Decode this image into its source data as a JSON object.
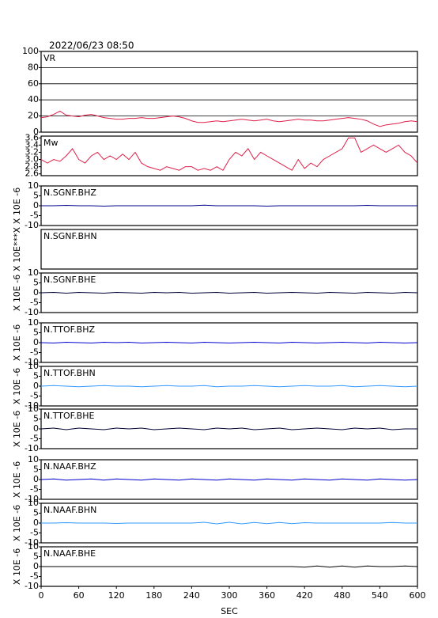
{
  "title": "2022/06/23  08:50",
  "chart_data": [
    {
      "type": "line",
      "title": "VR",
      "xlim": [
        0,
        600
      ],
      "ylim": [
        0,
        100
      ],
      "yticks": [
        0,
        20,
        40,
        60,
        80,
        100
      ],
      "grid": true,
      "x": [
        0,
        10,
        20,
        30,
        40,
        50,
        60,
        70,
        80,
        90,
        100,
        110,
        120,
        130,
        140,
        150,
        160,
        170,
        180,
        190,
        200,
        210,
        220,
        230,
        240,
        250,
        260,
        270,
        280,
        290,
        300,
        310,
        320,
        330,
        340,
        350,
        360,
        370,
        380,
        390,
        400,
        410,
        420,
        430,
        440,
        450,
        460,
        470,
        480,
        490,
        500,
        510,
        520,
        530,
        540,
        550,
        560,
        570,
        580,
        590,
        600
      ],
      "series": [
        {
          "color": "#e0204a",
          "values": [
            18,
            19,
            22,
            26,
            21,
            20,
            19,
            21,
            22,
            20,
            18,
            17,
            16,
            16,
            17,
            17,
            18,
            17,
            17,
            18,
            19,
            20,
            19,
            17,
            14,
            12,
            12,
            13,
            14,
            13,
            14,
            15,
            16,
            15,
            14,
            15,
            16,
            14,
            13,
            14,
            15,
            16,
            15,
            15,
            14,
            14,
            15,
            16,
            17,
            18,
            17,
            16,
            14,
            10,
            7,
            9,
            10,
            11,
            13,
            14,
            13
          ]
        }
      ]
    },
    {
      "type": "line",
      "title": "Mw",
      "xlim": [
        0,
        600
      ],
      "ylim": [
        2.55,
        3.65
      ],
      "yticks": [
        2.6,
        2.8,
        {
          "value": 3,
          "label": "3.0"
        },
        3.2,
        3.4,
        3.6
      ],
      "grid": false,
      "x": [
        0,
        10,
        20,
        30,
        40,
        50,
        60,
        70,
        80,
        90,
        100,
        110,
        120,
        130,
        140,
        150,
        160,
        170,
        180,
        190,
        200,
        210,
        220,
        230,
        240,
        250,
        260,
        270,
        280,
        290,
        300,
        310,
        320,
        330,
        340,
        350,
        360,
        370,
        380,
        390,
        400,
        410,
        420,
        430,
        440,
        450,
        460,
        470,
        480,
        490,
        500,
        510,
        520,
        530,
        540,
        550,
        560,
        570,
        580,
        590,
        600
      ],
      "series": [
        {
          "color": "#e0204a",
          "values": [
            3.0,
            2.9,
            3.0,
            2.95,
            3.1,
            3.3,
            3.0,
            2.9,
            3.1,
            3.2,
            3.0,
            3.1,
            3.0,
            3.15,
            3.0,
            3.2,
            2.9,
            2.8,
            2.75,
            2.7,
            2.8,
            2.75,
            2.7,
            2.8,
            2.8,
            2.7,
            2.75,
            2.7,
            2.8,
            2.7,
            3.0,
            3.2,
            3.1,
            3.3,
            3.0,
            3.2,
            3.1,
            3.0,
            2.9,
            2.8,
            2.7,
            3.0,
            2.75,
            2.9,
            2.8,
            3.0,
            3.1,
            3.2,
            3.3,
            3.6,
            3.6,
            3.2,
            3.3,
            3.4,
            3.3,
            3.2,
            3.3,
            3.4,
            3.2,
            3.1,
            2.9
          ]
        }
      ]
    },
    {
      "type": "line",
      "title": "N.SGNF.BHZ",
      "ylabel": "X 10E -6",
      "xlim": [
        0,
        600
      ],
      "ylim": [
        -10,
        10
      ],
      "yticks": [
        -10,
        -5,
        0,
        5,
        10
      ],
      "x": [
        0,
        20,
        40,
        60,
        80,
        100,
        120,
        140,
        160,
        180,
        200,
        220,
        240,
        260,
        280,
        300,
        320,
        340,
        360,
        380,
        400,
        420,
        440,
        460,
        480,
        500,
        520,
        540,
        560,
        580,
        600
      ],
      "series": [
        {
          "color": "#00008b",
          "values": [
            0,
            0,
            0.2,
            0,
            0,
            -0.2,
            0,
            0,
            0,
            0,
            0,
            0,
            0,
            0.3,
            0,
            0,
            0,
            0,
            -0.2,
            0,
            0,
            0,
            0,
            0,
            0,
            0,
            0.2,
            0,
            0,
            0,
            0
          ]
        }
      ]
    },
    {
      "type": "line",
      "title": "N.SGNF.BHN",
      "ylabel": "X 10E***X",
      "xlim": [
        0,
        600
      ]
    },
    {
      "type": "line",
      "title": "N.SGNF.BHE",
      "ylabel": "X 10E -6",
      "xlim": [
        0,
        600
      ],
      "ylim": [
        -10,
        10
      ],
      "yticks": [
        -10,
        -5,
        0,
        5,
        10
      ],
      "x": [
        0,
        20,
        40,
        60,
        80,
        100,
        120,
        140,
        160,
        180,
        200,
        220,
        240,
        260,
        280,
        300,
        320,
        340,
        360,
        380,
        400,
        420,
        440,
        460,
        480,
        500,
        520,
        540,
        560,
        580,
        600
      ],
      "series": [
        {
          "color": "#000033",
          "values": [
            0,
            0.2,
            -0.2,
            0.2,
            0,
            -0.2,
            0.2,
            0,
            -0.2,
            0.2,
            0,
            0.2,
            -0.2,
            0,
            0.2,
            -0.2,
            0,
            0.2,
            -0.2,
            0,
            0.2,
            0,
            -0.2,
            0.2,
            0,
            -0.2,
            0.2,
            0,
            -0.2,
            0.2,
            0
          ]
        }
      ]
    },
    {
      "type": "line",
      "title": "N.TTOF.BHZ",
      "ylabel": "X 10E -6",
      "xlim": [
        0,
        600
      ],
      "ylim": [
        -10,
        10
      ],
      "yticks": [
        -10,
        -5,
        0,
        5,
        10
      ],
      "x": [
        0,
        20,
        40,
        60,
        80,
        100,
        120,
        140,
        160,
        180,
        200,
        220,
        240,
        260,
        280,
        300,
        320,
        340,
        360,
        380,
        400,
        420,
        440,
        460,
        480,
        500,
        520,
        540,
        560,
        580,
        600
      ],
      "series": [
        {
          "color": "#0000cd",
          "values": [
            0,
            -0.2,
            0.2,
            0,
            -0.2,
            0.2,
            0,
            0.2,
            -0.2,
            0,
            0.2,
            0,
            -0.2,
            0.2,
            0,
            -0.2,
            0,
            0.2,
            0,
            -0.2,
            0.2,
            0,
            -0.2,
            0,
            0.2,
            0,
            -0.2,
            0.2,
            0,
            -0.2,
            0
          ]
        }
      ]
    },
    {
      "type": "line",
      "title": "N.TTOF.BHN",
      "ylabel": "X 10E -6",
      "xlim": [
        0,
        600
      ],
      "ylim": [
        -10,
        10
      ],
      "yticks": [
        -10,
        -5,
        0,
        5,
        10
      ],
      "x": [
        0,
        20,
        40,
        60,
        80,
        100,
        120,
        140,
        160,
        180,
        200,
        220,
        240,
        260,
        280,
        300,
        320,
        340,
        360,
        380,
        400,
        420,
        440,
        460,
        480,
        500,
        520,
        540,
        560,
        580,
        600
      ],
      "series": [
        {
          "color": "#3399ff",
          "values": [
            0,
            0.3,
            0,
            -0.3,
            0,
            0.3,
            0,
            0,
            -0.3,
            0,
            0.3,
            0,
            0,
            0.3,
            -0.3,
            0,
            0,
            0.3,
            0,
            -0.3,
            0,
            0.3,
            0,
            0,
            0.3,
            -0.3,
            0,
            0.3,
            0,
            -0.3,
            0
          ]
        }
      ]
    },
    {
      "type": "line",
      "title": "N.TTOF.BHE",
      "ylabel": "X 10E -6",
      "xlim": [
        0,
        600
      ],
      "ylim": [
        -10,
        10
      ],
      "yticks": [
        -10,
        -5,
        0,
        5,
        10
      ],
      "x": [
        0,
        20,
        40,
        60,
        80,
        100,
        120,
        140,
        160,
        180,
        200,
        220,
        240,
        260,
        280,
        300,
        320,
        340,
        360,
        380,
        400,
        420,
        440,
        460,
        480,
        500,
        520,
        540,
        560,
        580,
        600
      ],
      "series": [
        {
          "color": "#000033",
          "values": [
            0,
            0.4,
            -0.4,
            0.4,
            0,
            -0.4,
            0.4,
            0,
            0.4,
            -0.4,
            0,
            0.4,
            0,
            -0.4,
            0.4,
            0,
            0.4,
            -0.4,
            0,
            0.4,
            -0.4,
            0,
            0.4,
            0,
            -0.4,
            0.4,
            0,
            0.4,
            -0.4,
            0,
            0
          ]
        }
      ]
    },
    {
      "type": "line",
      "title": "N.NAAF.BHZ",
      "ylabel": "X 10E -6",
      "xlim": [
        0,
        600
      ],
      "ylim": [
        -10,
        10
      ],
      "yticks": [
        -10,
        -5,
        0,
        5,
        10
      ],
      "x": [
        0,
        20,
        40,
        60,
        80,
        100,
        120,
        140,
        160,
        180,
        200,
        220,
        240,
        260,
        280,
        300,
        320,
        340,
        360,
        380,
        400,
        420,
        440,
        460,
        480,
        500,
        520,
        540,
        560,
        580,
        600
      ],
      "series": [
        {
          "color": "#0000cd",
          "values": [
            0,
            0.3,
            -0.3,
            0,
            0.3,
            -0.3,
            0.3,
            0,
            -0.3,
            0.3,
            0,
            -0.3,
            0.3,
            0,
            -0.3,
            0.3,
            0,
            -0.3,
            0.3,
            0,
            -0.3,
            0.3,
            0,
            -0.3,
            0.3,
            0,
            -0.3,
            0.3,
            0,
            -0.3,
            0
          ]
        }
      ]
    },
    {
      "type": "line",
      "title": "N.NAAF.BHN",
      "ylabel": "X 10E -6",
      "xlim": [
        0,
        600
      ],
      "ylim": [
        -10,
        10
      ],
      "yticks": [
        -10,
        -5,
        0,
        5,
        10
      ],
      "x": [
        0,
        20,
        40,
        60,
        80,
        100,
        120,
        140,
        160,
        180,
        200,
        220,
        240,
        260,
        280,
        300,
        320,
        340,
        360,
        380,
        400,
        420,
        440,
        460,
        480,
        500,
        520,
        540,
        560,
        580,
        600
      ],
      "series": [
        {
          "color": "#3399ff",
          "values": [
            0,
            0,
            0.2,
            0,
            0,
            0,
            -0.2,
            0,
            0,
            0,
            0,
            0,
            0,
            0.4,
            -0.4,
            0.4,
            -0.4,
            0.3,
            -0.3,
            0.3,
            -0.3,
            0.2,
            0,
            0,
            0,
            0,
            0,
            0,
            0.3,
            0,
            0
          ]
        }
      ]
    },
    {
      "type": "line",
      "title": "N.NAAF.BHE",
      "ylabel": "X 10E -6",
      "xlim": [
        0,
        600
      ],
      "ylim": [
        -10,
        10
      ],
      "yticks": [
        -10,
        -5,
        0,
        5,
        10
      ],
      "xticks": [
        0,
        60,
        120,
        180,
        240,
        300,
        360,
        420,
        480,
        540,
        600
      ],
      "xlabel": "SEC",
      "x": [
        0,
        20,
        40,
        60,
        80,
        100,
        120,
        140,
        160,
        180,
        200,
        220,
        240,
        260,
        280,
        300,
        320,
        340,
        360,
        380,
        400,
        420,
        440,
        460,
        480,
        500,
        520,
        540,
        560,
        580,
        600
      ],
      "series": [
        {
          "color": "#000000",
          "values": [
            0,
            0,
            0,
            0,
            0,
            0,
            0,
            0,
            0,
            0,
            0,
            0,
            0,
            0,
            0,
            0,
            0,
            0,
            0,
            0,
            0,
            -0.3,
            0.3,
            -0.3,
            0.3,
            -0.3,
            0.3,
            0,
            0,
            0.3,
            0
          ]
        }
      ]
    }
  ]
}
